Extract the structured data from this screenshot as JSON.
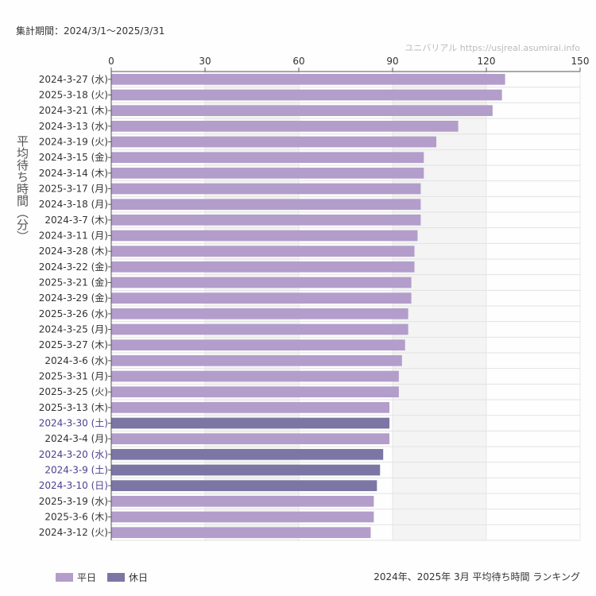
{
  "header": {
    "period": "集計期間：2024/3/1～2025/3/31",
    "site": "ユニバリアル  https://usjreal.asumirai.info"
  },
  "footer": {
    "caption": "2024年、2025年 3月 平均待ち時間 ランキング"
  },
  "colors": {
    "weekday": "#b39dcb",
    "holiday": "#7b76a4",
    "holiday_label": "#4b4190"
  },
  "chart_data": {
    "type": "bar",
    "orientation": "horizontal",
    "ylabel": "平均待ち時間（分）",
    "xlim": [
      0,
      150
    ],
    "xticks": [
      0,
      30,
      60,
      90,
      120,
      150
    ],
    "grid": true,
    "legend_placement": "bottom-left",
    "legend": [
      {
        "name": "平日",
        "key": "weekday"
      },
      {
        "name": "休日",
        "key": "holiday"
      }
    ],
    "categories": [
      "2024-3-27 (水)",
      "2025-3-18 (火)",
      "2024-3-21 (木)",
      "2024-3-13 (水)",
      "2024-3-19 (火)",
      "2024-3-15 (金)",
      "2024-3-14 (木)",
      "2025-3-17 (月)",
      "2024-3-18 (月)",
      "2024-3-7 (木)",
      "2024-3-11 (月)",
      "2024-3-28 (木)",
      "2024-3-22 (金)",
      "2025-3-21 (金)",
      "2024-3-29 (金)",
      "2025-3-26 (水)",
      "2024-3-25 (月)",
      "2025-3-27 (木)",
      "2024-3-6 (水)",
      "2025-3-31 (月)",
      "2025-3-25 (火)",
      "2025-3-13 (木)",
      "2024-3-30 (土)",
      "2024-3-4 (月)",
      "2024-3-20 (水)",
      "2024-3-9 (土)",
      "2024-3-10 (日)",
      "2025-3-19 (水)",
      "2025-3-6 (木)",
      "2024-3-12 (火)"
    ],
    "values": [
      126,
      125,
      122,
      111,
      104,
      100,
      100,
      99,
      99,
      99,
      98,
      97,
      97,
      96,
      96,
      95,
      95,
      94,
      93,
      92,
      92,
      89,
      89,
      89,
      87,
      86,
      85,
      84,
      84,
      83
    ],
    "day_type": [
      "weekday",
      "weekday",
      "weekday",
      "weekday",
      "weekday",
      "weekday",
      "weekday",
      "weekday",
      "weekday",
      "weekday",
      "weekday",
      "weekday",
      "weekday",
      "weekday",
      "weekday",
      "weekday",
      "weekday",
      "weekday",
      "weekday",
      "weekday",
      "weekday",
      "weekday",
      "holiday",
      "weekday",
      "holiday",
      "holiday",
      "holiday",
      "weekday",
      "weekday",
      "weekday"
    ]
  }
}
